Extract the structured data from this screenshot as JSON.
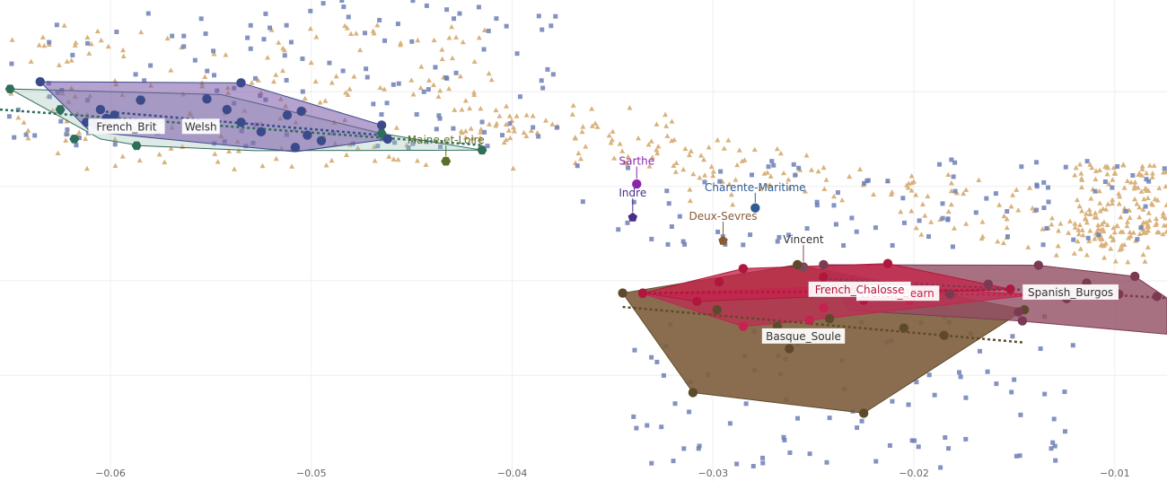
{
  "chart_data": {
    "type": "scatter",
    "title": "",
    "xlabel": "",
    "ylabel": "",
    "xlim": [
      -0.0655,
      -0.0074
    ],
    "ylim": [
      -0.054,
      0.0325
    ],
    "x_ticks": [
      -0.06,
      -0.05,
      -0.04,
      -0.03,
      -0.02,
      -0.01
    ],
    "x_tick_labels": [
      "−0.06",
      "−0.05",
      "−0.04",
      "−0.03",
      "−0.02",
      "−0.01"
    ],
    "y_grid_values": [
      0.016,
      -0.001,
      -0.018,
      -0.035
    ],
    "grid": true,
    "legend": "none",
    "background": {
      "triangle_color": "#d9b27c",
      "square_color": "#6d7fb5",
      "triangle_count": 560,
      "square_count": 320
    },
    "groups": [
      {
        "label": "French_Brit",
        "color": "#2e6e5a",
        "fill": "rgba(157,196,186,0.35)",
        "marker": "hexagon",
        "label_at": [
          -0.0592,
          0.0097
        ],
        "hull": [
          [
            -0.065,
            0.0165
          ],
          [
            -0.0545,
            0.0155
          ],
          [
            -0.0465,
            0.0085
          ],
          [
            -0.0415,
            0.0055
          ],
          [
            -0.0528,
            0.0054
          ],
          [
            -0.0585,
            0.0063
          ],
          [
            -0.0605,
            0.0075
          ]
        ],
        "points": [
          [
            -0.065,
            0.0165
          ],
          [
            -0.0625,
            0.0128
          ],
          [
            -0.0618,
            0.0075
          ],
          [
            -0.0587,
            0.0063
          ],
          [
            -0.0585,
            0.0145
          ],
          [
            -0.0415,
            0.0055
          ],
          [
            -0.0465,
            0.0085
          ]
        ],
        "trend": [
          [
            -0.0655,
            0.0128
          ],
          [
            -0.0415,
            0.0064
          ]
        ]
      },
      {
        "label": "Welsh",
        "color": "#3b4a8a",
        "fill": "rgba(120,86,165,0.55)",
        "marker": "circle",
        "label_at": [
          -0.0555,
          0.0097
        ],
        "hull": [
          [
            -0.0635,
            0.0178
          ],
          [
            -0.0535,
            0.0176
          ],
          [
            -0.0465,
            0.01
          ],
          [
            -0.0462,
            0.0075
          ],
          [
            -0.0508,
            0.0052
          ],
          [
            -0.061,
            0.0088
          ]
        ],
        "points": [
          [
            -0.0635,
            0.0178
          ],
          [
            -0.0535,
            0.0176
          ],
          [
            -0.0605,
            0.0128
          ],
          [
            -0.0598,
            0.0118
          ],
          [
            -0.0608,
            0.0102
          ],
          [
            -0.0602,
            0.0112
          ],
          [
            -0.0585,
            0.0145
          ],
          [
            -0.0552,
            0.0147
          ],
          [
            -0.0542,
            0.0128
          ],
          [
            -0.0512,
            0.0118
          ],
          [
            -0.0505,
            0.0125
          ],
          [
            -0.0502,
            0.0082
          ],
          [
            -0.0508,
            0.006
          ],
          [
            -0.0535,
            0.0105
          ],
          [
            -0.0465,
            0.01
          ],
          [
            -0.0462,
            0.0075
          ],
          [
            -0.0525,
            0.0088
          ],
          [
            -0.0495,
            0.0072
          ],
          [
            -0.0612,
            0.0105
          ]
        ],
        "trend": [
          [
            -0.0605,
            0.0125
          ],
          [
            -0.0465,
            0.0082
          ]
        ]
      },
      {
        "label": "Maine-et-Loire",
        "color": "#5b6f2a",
        "marker": "hexagon",
        "label_at": [
          -0.0433,
          0.0073
        ],
        "points": [
          [
            -0.0433,
            0.0035
          ]
        ]
      },
      {
        "label": "Sarthe",
        "color": "#8e24aa",
        "marker": "circle",
        "label_at": [
          -0.0338,
          0.0035
        ],
        "points": [
          [
            -0.0338,
            -0.0006
          ]
        ]
      },
      {
        "label": "Indre",
        "color": "#4a2d8a",
        "marker": "pentagon",
        "label_at": [
          -0.034,
          -0.0022
        ],
        "points": [
          [
            -0.034,
            -0.0066
          ]
        ]
      },
      {
        "label": "Charente-Maritime",
        "color": "#2f5b94",
        "marker": "circle",
        "label_at": [
          -0.0279,
          -0.0012
        ],
        "points": [
          [
            -0.0279,
            -0.0049
          ]
        ]
      },
      {
        "label": "Deux-Sevres",
        "color": "#8a5a36",
        "marker": "pentagon",
        "label_at": [
          -0.0295,
          -0.0064
        ],
        "points": [
          [
            -0.0295,
            -0.0108
          ]
        ]
      },
      {
        "label": "Vincent",
        "color": "#7a4a5a",
        "marker": "circle",
        "label_at": [
          -0.0255,
          -0.0106
        ],
        "points": [
          [
            -0.0255,
            -0.0155
          ]
        ]
      },
      {
        "label": "Basque_Soule",
        "color": "#5e4a2a",
        "fill": "rgba(128,97,64,0.92)",
        "marker": "circle",
        "label_at": [
          -0.0255,
          -0.028
        ],
        "hull": [
          [
            -0.0345,
            -0.0202
          ],
          [
            -0.0258,
            -0.0151
          ],
          [
            -0.0145,
            -0.0232
          ],
          [
            -0.0225,
            -0.0418
          ],
          [
            -0.031,
            -0.0381
          ]
        ],
        "points": [
          [
            -0.0345,
            -0.0202
          ],
          [
            -0.0258,
            -0.0151
          ],
          [
            -0.0145,
            -0.0232
          ],
          [
            -0.0225,
            -0.0418
          ],
          [
            -0.031,
            -0.0381
          ],
          [
            -0.0262,
            -0.0302
          ],
          [
            -0.0242,
            -0.0248
          ],
          [
            -0.0205,
            -0.0265
          ],
          [
            -0.0185,
            -0.0278
          ],
          [
            -0.0298,
            -0.0232
          ],
          [
            -0.0268,
            -0.0262
          ]
        ],
        "trend": [
          [
            -0.0345,
            -0.0227
          ],
          [
            -0.0145,
            -0.0291
          ]
        ]
      },
      {
        "label": "Spanish_Burgos",
        "color": "#7b3a52",
        "fill": "rgba(146,78,97,0.8)",
        "marker": "circle",
        "label_at": [
          -0.0122,
          -0.0201
        ],
        "hull": [
          [
            -0.0245,
            -0.0151
          ],
          [
            -0.0138,
            -0.0152
          ],
          [
            -0.009,
            -0.0172
          ],
          [
            -0.0074,
            -0.0211
          ],
          [
            -0.0074,
            -0.0276
          ],
          [
            -0.0148,
            -0.0252
          ],
          [
            -0.0232,
            -0.0233
          ]
        ],
        "points": [
          [
            -0.0245,
            -0.0151
          ],
          [
            -0.0138,
            -0.0152
          ],
          [
            -0.009,
            -0.0172
          ],
          [
            -0.0114,
            -0.0184
          ],
          [
            -0.0098,
            -0.0204
          ],
          [
            -0.0124,
            -0.0212
          ],
          [
            -0.0148,
            -0.0236
          ],
          [
            -0.0146,
            -0.0252
          ],
          [
            -0.0079,
            -0.0208
          ],
          [
            -0.0163,
            -0.0186
          ],
          [
            -0.0182,
            -0.0204
          ]
        ],
        "trend": [
          [
            -0.0245,
            -0.0176
          ],
          [
            -0.0074,
            -0.0211
          ]
        ]
      },
      {
        "label": "French_Bearn",
        "color": "#c4234f",
        "fill": "rgba(186,48,82,0.78)",
        "marker": "circle",
        "label_at": [
          -0.0208,
          -0.0203
        ],
        "hull": [
          [
            -0.0335,
            -0.0203
          ],
          [
            -0.0222,
            -0.0188
          ],
          [
            -0.014,
            -0.0205
          ],
          [
            -0.0252,
            -0.0251
          ],
          [
            -0.0285,
            -0.0262
          ]
        ],
        "points": [
          [
            -0.0335,
            -0.0203
          ],
          [
            -0.0222,
            -0.0188
          ],
          [
            -0.014,
            -0.0205
          ],
          [
            -0.0252,
            -0.0251
          ],
          [
            -0.0285,
            -0.0262
          ],
          [
            -0.0245,
            -0.0228
          ],
          [
            -0.0202,
            -0.0215
          ]
        ],
        "trend": [
          [
            -0.0335,
            -0.0203
          ],
          [
            -0.014,
            -0.0205
          ]
        ]
      },
      {
        "label": "French_Chalosse",
        "color": "#b0173f",
        "fill": "rgba(196,36,74,0.78)",
        "marker": "circle",
        "label_at": [
          -0.0227,
          -0.0196
        ],
        "hull": [
          [
            -0.0335,
            -0.0202
          ],
          [
            -0.0285,
            -0.0158
          ],
          [
            -0.0213,
            -0.0149
          ],
          [
            -0.0152,
            -0.0195
          ],
          [
            -0.0308,
            -0.0217
          ]
        ],
        "points": [
          [
            -0.0335,
            -0.0202
          ],
          [
            -0.0285,
            -0.0158
          ],
          [
            -0.0213,
            -0.0149
          ],
          [
            -0.0152,
            -0.0195
          ],
          [
            -0.0308,
            -0.0217
          ],
          [
            -0.0297,
            -0.0182
          ],
          [
            -0.0245,
            -0.0173
          ],
          [
            -0.0225,
            -0.0215
          ]
        ],
        "trend": [
          [
            -0.0335,
            -0.0202
          ],
          [
            -0.0152,
            -0.0196
          ]
        ]
      }
    ]
  }
}
